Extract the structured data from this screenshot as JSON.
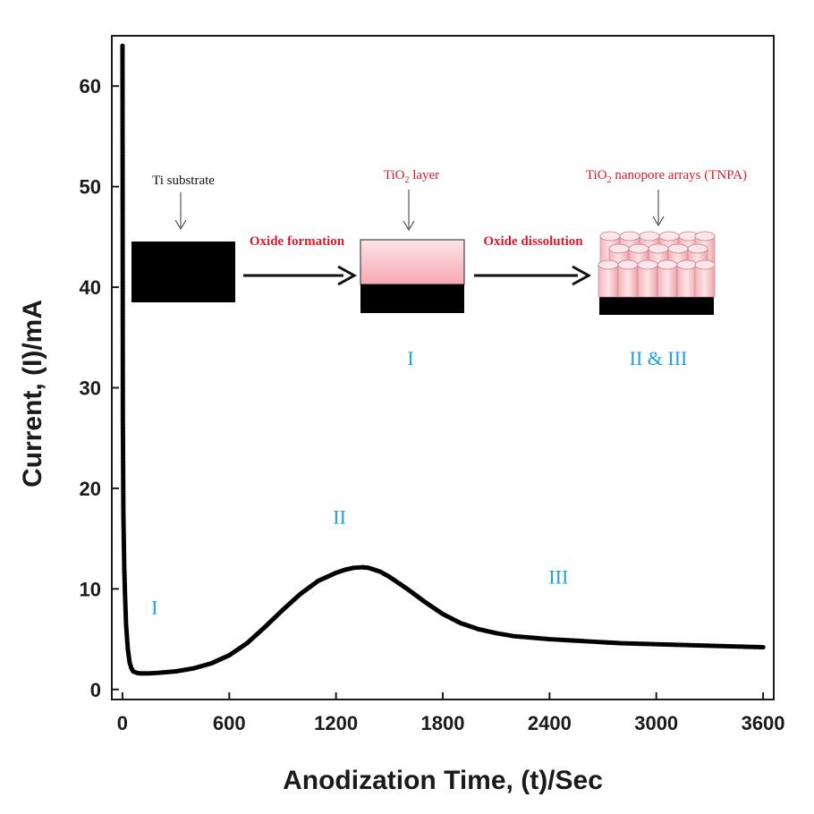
{
  "chart_data": {
    "type": "scatter",
    "title": "",
    "xlabel": "Anodization Time, (t)/Sec",
    "ylabel": "Current, (I)/mA",
    "xlim": [
      -60,
      3660
    ],
    "ylim": [
      -1,
      65
    ],
    "xticks": [
      0,
      600,
      1200,
      1800,
      2400,
      3000,
      3600
    ],
    "xtick_labels": [
      "0",
      "600",
      "1200",
      "1800",
      "2400",
      "3000",
      "3600"
    ],
    "yticks": [
      0,
      10,
      20,
      30,
      40,
      50,
      60
    ],
    "ytick_labels": [
      "0",
      "10",
      "20",
      "30",
      "40",
      "50",
      "60"
    ],
    "grid": false,
    "marker_color": "#000000",
    "series": [
      {
        "x": [
          0,
          2,
          5,
          10,
          15,
          20,
          30,
          40,
          50,
          60,
          80,
          100,
          150,
          200,
          300,
          400,
          500,
          600,
          700,
          800,
          900,
          1000,
          1100,
          1200,
          1250,
          1300,
          1350,
          1380,
          1400,
          1450,
          1500,
          1600,
          1700,
          1800,
          1900,
          2000,
          2100,
          2200,
          2400,
          2600,
          2800,
          3000,
          3200,
          3400,
          3600
        ],
        "y": [
          64,
          27,
          17.5,
          12,
          9,
          6.5,
          4,
          2.7,
          2.1,
          1.8,
          1.65,
          1.6,
          1.6,
          1.65,
          1.8,
          2.1,
          2.6,
          3.4,
          4.6,
          6.2,
          7.9,
          9.5,
          10.8,
          11.6,
          11.9,
          12.1,
          12.15,
          12.1,
          12.0,
          11.7,
          11.2,
          10.0,
          8.7,
          7.5,
          6.6,
          6.0,
          5.6,
          5.3,
          5.0,
          4.8,
          4.6,
          4.5,
          4.4,
          4.3,
          4.2
        ]
      }
    ],
    "annotations": {
      "stage_labels": [
        {
          "text": "I",
          "x": 180,
          "y": 7.5
        },
        {
          "text": "II",
          "x": 1220,
          "y": 16.5
        },
        {
          "text": "III",
          "x": 2450,
          "y": 10.5
        }
      ],
      "schematic": {
        "ti_substrate": "Ti substrate",
        "oxide_formation": "Oxide formation",
        "tio2_layer_main": "TiO",
        "tio2_layer_sub": "2",
        "tio2_layer_rest": " layer",
        "oxide_dissolution": "Oxide dissolution",
        "tnpa_main": "TiO",
        "tnpa_sub": "2",
        "tnpa_rest": " nanopore arrays (TNPA)",
        "stage_i": "I",
        "stage_ii_iii": "II & III"
      }
    }
  }
}
